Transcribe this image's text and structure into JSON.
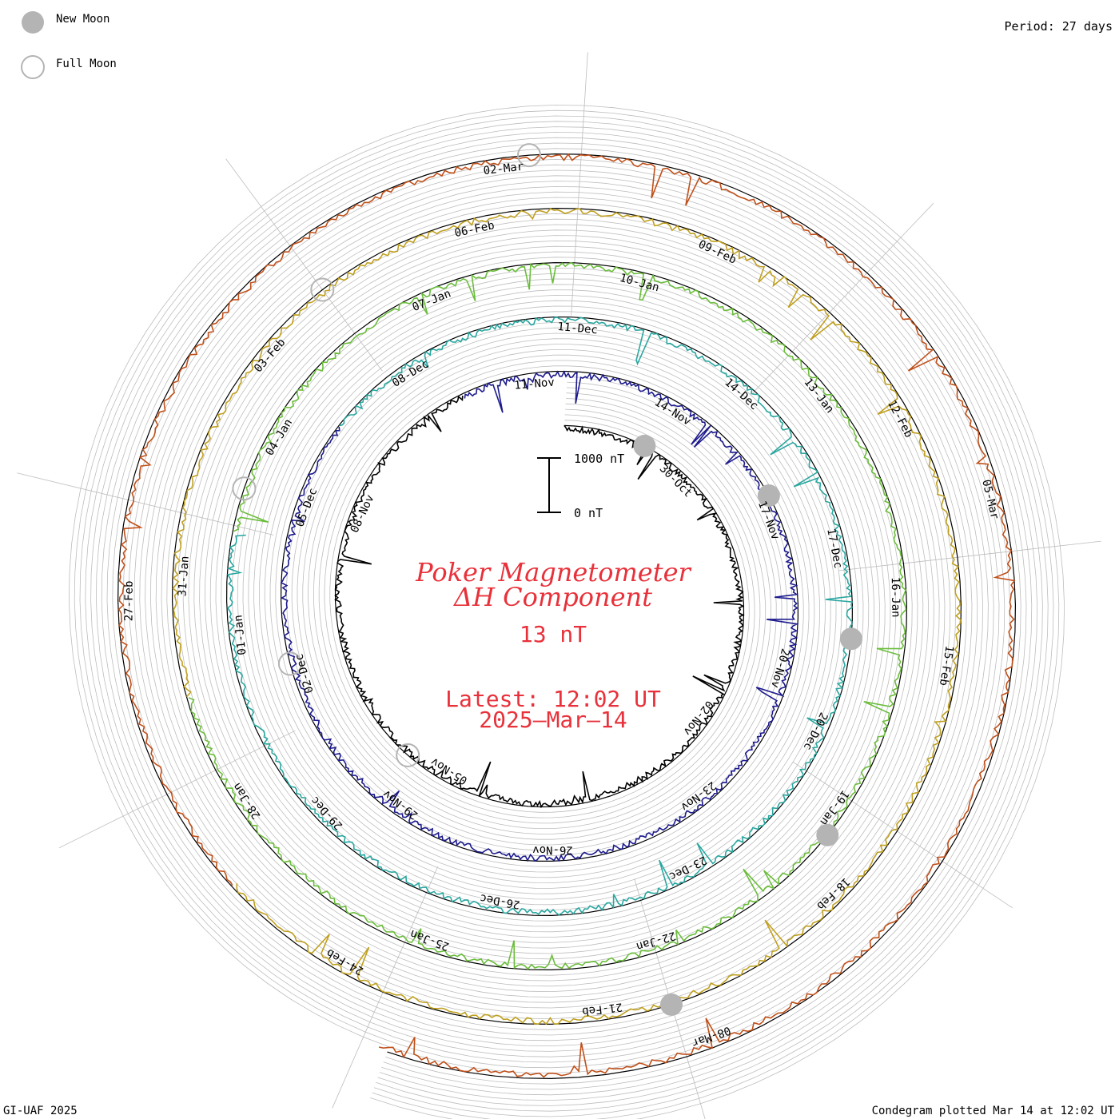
{
  "legend": {
    "new_moon": "New Moon",
    "full_moon": "Full Moon"
  },
  "period": "Period: 27 days",
  "footer_left": "GI-UAF 2025",
  "footer_right": "Condegram plotted Mar 14 at 12:02 UT",
  "scale_bar": {
    "top_label": "1000 nT",
    "bottom_label": "0 nT"
  },
  "center": {
    "title_line1": "Poker Magnetometer",
    "title_line2": "ΔH Component",
    "value": "13 nT",
    "latest_label": "Latest: 12:02 UT",
    "latest_date": "2025–Mar–14"
  },
  "colors": {
    "text_red": "#e8313a",
    "moon_gray": "#b4b4b4",
    "grid": "#bdbdbd"
  },
  "chart_data": {
    "type": "line",
    "subtype": "condegram-spiral",
    "period_days": 27,
    "unit": "nT",
    "scale_bar_nT": [
      0,
      1000
    ],
    "series": [
      {
        "color": "#000000",
        "date_labels": [
          "30-Oct",
          "02-Nov",
          "05-Nov",
          "08-Nov"
        ]
      },
      {
        "color": "#1c1a8c",
        "date_labels": [
          "11-Nov",
          "14-Nov",
          "17-Nov",
          "20-Nov",
          "23-Nov",
          "26-Nov",
          "29-Nov",
          "02-Dec",
          "05-Dec"
        ]
      },
      {
        "color": "#2aa7a0",
        "date_labels": [
          "08-Dec",
          "11-Dec",
          "14-Dec",
          "17-Dec",
          "20-Dec",
          "23-Dec",
          "26-Dec",
          "29-Dec",
          "01-Jan"
        ]
      },
      {
        "color": "#6bbd3c",
        "date_labels": [
          "04-Jan",
          "07-Jan",
          "10-Jan",
          "13-Jan",
          "16-Jan",
          "19-Jan",
          "22-Jan",
          "25-Jan",
          "28-Jan"
        ]
      },
      {
        "color": "#c0a020",
        "date_labels": [
          "31-Jan",
          "03-Feb",
          "06-Feb",
          "09-Feb",
          "12-Feb",
          "15-Feb",
          "18-Feb",
          "21-Feb",
          "24-Feb"
        ]
      },
      {
        "color": "#c0501a",
        "date_labels": [
          "27-Feb",
          "02-Mar",
          "05-Mar",
          "08-Mar"
        ]
      }
    ],
    "new_moon_dates": [
      "01-Nov",
      "01-Dec",
      "30-Dec",
      "29-Jan",
      "28-Feb"
    ],
    "full_moon_dates": [
      "15-Nov",
      "15-Dec",
      "13-Jan",
      "12-Feb",
      "14-Mar"
    ],
    "latest_value_nT": 13,
    "latest_time": "2025-03-14 12:02 UT"
  }
}
